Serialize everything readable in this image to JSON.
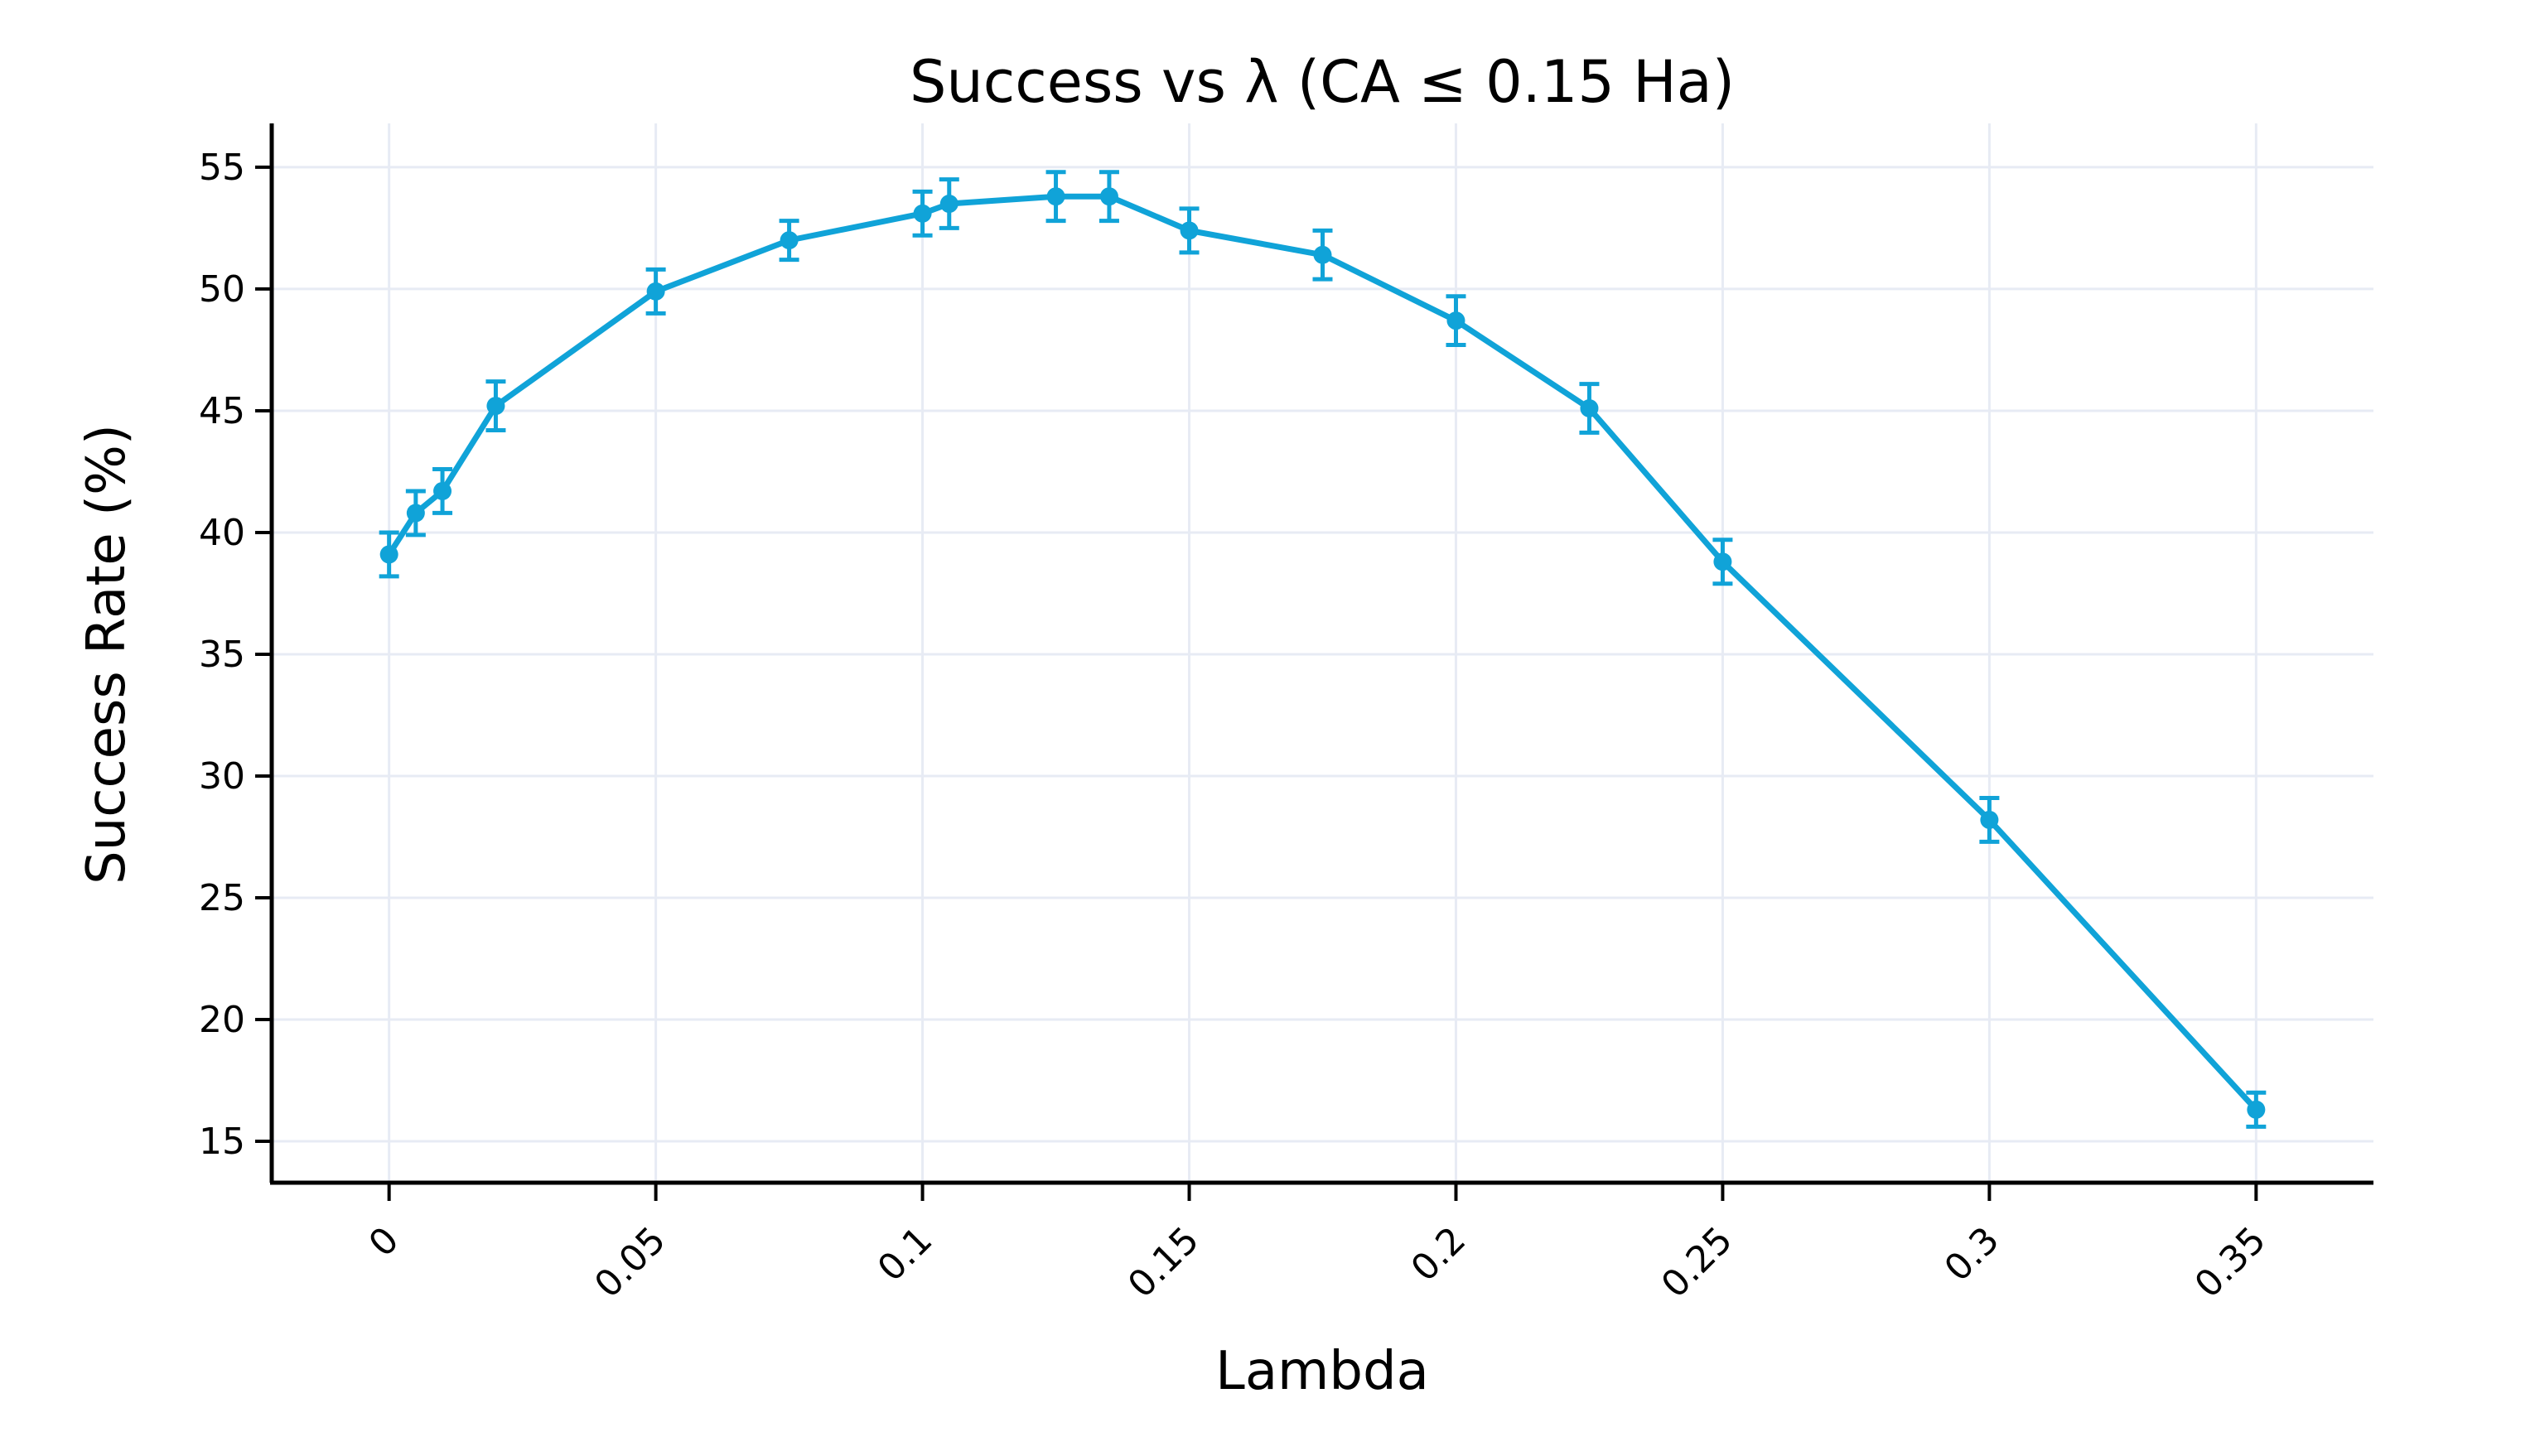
{
  "page": {
    "background_color": "#ffffff",
    "text_color": "#000000"
  },
  "chart_data": {
    "type": "line",
    "title": "Success vs λ (CA ≤ 0.15 Ha)",
    "xlabel": "Lambda",
    "ylabel": "Success Rate (%)",
    "legend": "none",
    "grid": true,
    "grid_color": "#e7ebf4",
    "axis_color": "#000000",
    "x_tick_angle": -45,
    "xlim": [
      -0.022,
      0.372
    ],
    "ylim": [
      13.3,
      56.8
    ],
    "x_ticks": [
      0,
      0.05,
      0.1,
      0.15,
      0.2,
      0.25,
      0.3,
      0.35
    ],
    "x_tick_labels": [
      "0",
      "0.05",
      "0.1",
      "0.15",
      "0.2",
      "0.25",
      "0.3",
      "0.35"
    ],
    "y_ticks": [
      15,
      20,
      25,
      30,
      35,
      40,
      45,
      50,
      55
    ],
    "y_tick_labels": [
      "15",
      "20",
      "25",
      "30",
      "35",
      "40",
      "45",
      "50",
      "55"
    ],
    "series": [
      {
        "name": "success-rate",
        "color": "#10a3d8",
        "marker": "circle",
        "error_bars": true,
        "x": [
          0.0,
          0.005,
          0.01,
          0.02,
          0.05,
          0.075,
          0.1,
          0.105,
          0.125,
          0.135,
          0.15,
          0.175,
          0.2,
          0.225,
          0.25,
          0.3,
          0.35
        ],
        "y": [
          39.1,
          40.8,
          41.7,
          45.2,
          49.9,
          52.0,
          53.1,
          53.5,
          53.8,
          53.8,
          52.4,
          51.4,
          48.7,
          45.1,
          38.8,
          28.2,
          16.3
        ],
        "yerr": [
          0.9,
          0.9,
          0.9,
          1.0,
          0.9,
          0.8,
          0.9,
          1.0,
          1.0,
          1.0,
          0.9,
          1.0,
          1.0,
          1.0,
          0.9,
          0.9,
          0.7
        ]
      }
    ]
  }
}
